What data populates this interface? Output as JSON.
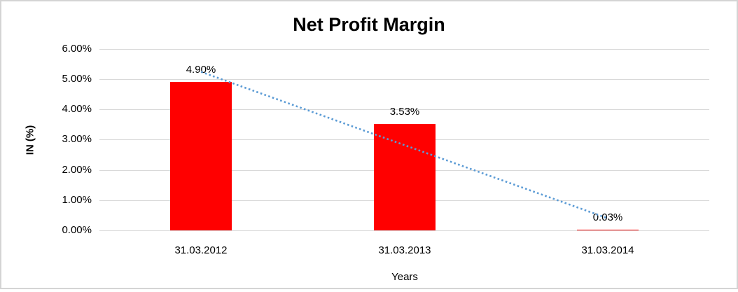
{
  "frame": {
    "background": "#FFFFFF",
    "border_color": "#D4D4D4"
  },
  "chart_data": {
    "type": "bar",
    "title": "Net Profit Margin",
    "categories": [
      "31.03.2012",
      "31.03.2013",
      "31.03.2014"
    ],
    "values": [
      4.9,
      3.53,
      0.03
    ],
    "data_labels": [
      "4.90%",
      "3.53%",
      "0.03%"
    ],
    "xlabel": "Years",
    "ylabel": "IN (%)",
    "ylim": [
      0,
      6
    ],
    "ytick_values": [
      0,
      1,
      2,
      3,
      4,
      5,
      6
    ],
    "ytick_labels": [
      "0.00%",
      "1.00%",
      "2.00%",
      "3.00%",
      "4.00%",
      "5.00%",
      "6.00%"
    ],
    "grid": true,
    "legend": "none",
    "bar_color": "#FF0000",
    "gridline_color": "#D9D9D9",
    "text_color": "#000000",
    "trendline": {
      "type": "linear",
      "style": "dotted",
      "color": "#5B9BD5",
      "endpoints_pct": [
        5.24,
        0.4
      ]
    }
  }
}
